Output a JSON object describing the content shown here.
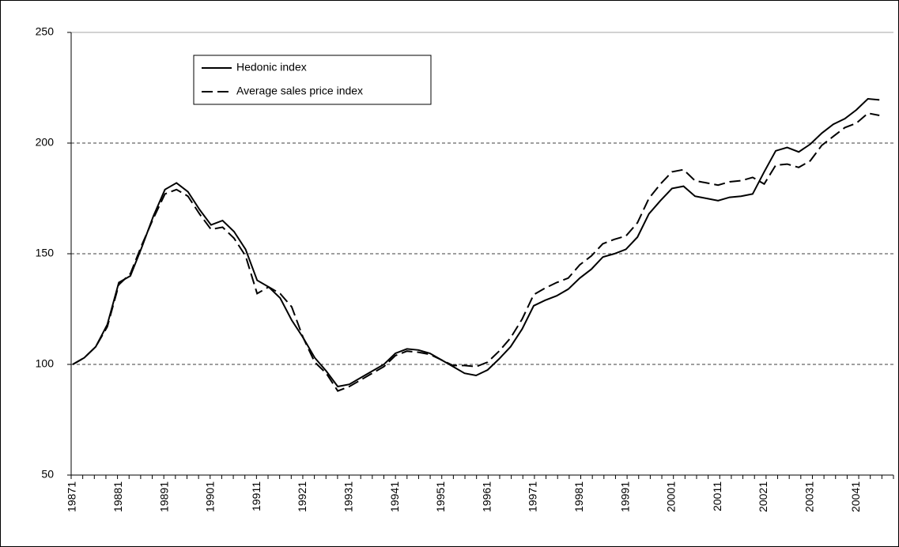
{
  "chart_data": {
    "type": "line",
    "categories": [
      "19871",
      null,
      null,
      null,
      "19881",
      null,
      null,
      null,
      "19891",
      null,
      null,
      null,
      "19901",
      null,
      null,
      null,
      "19911",
      null,
      null,
      null,
      "19921",
      null,
      null,
      null,
      "19931",
      null,
      null,
      null,
      "19941",
      null,
      null,
      null,
      "19951",
      null,
      null,
      null,
      "19961",
      null,
      null,
      null,
      "19971",
      null,
      null,
      null,
      "19981",
      null,
      null,
      null,
      "19991",
      null,
      null,
      null,
      "20001",
      null,
      null,
      null,
      "20011",
      null,
      null,
      null,
      "20021",
      null,
      null,
      null,
      "20031",
      null,
      null,
      null,
      "20041",
      null,
      null
    ],
    "series": [
      {
        "name": "Hedonic index",
        "color": "#000000",
        "line_style": "solid",
        "values": [
          100,
          103,
          108,
          118,
          137,
          140,
          153,
          167,
          179,
          182,
          178,
          170,
          163,
          165,
          160,
          152,
          138,
          135,
          130,
          120,
          112,
          103,
          97,
          90,
          91,
          94,
          97,
          100,
          105,
          107,
          106.5,
          105,
          102,
          99,
          96,
          95,
          97.5,
          102.5,
          108,
          116,
          126.5,
          129,
          131,
          134,
          139,
          143,
          148.5,
          150,
          152,
          157.5,
          168,
          174,
          179.5,
          180.5,
          176,
          175,
          174,
          175.5,
          176,
          177,
          187,
          196.5,
          198,
          196,
          199.5,
          204.5,
          208.5,
          211,
          215,
          220,
          219.5
        ]
      },
      {
        "name": "Average sales price index",
        "color": "#000000",
        "line_style": "dashed",
        "values": [
          100,
          103,
          108,
          117,
          136,
          141,
          154,
          166,
          177,
          179,
          176,
          168,
          161,
          162,
          157,
          149,
          132,
          135,
          132,
          126,
          112,
          101,
          96,
          88,
          90,
          93,
          96,
          99,
          104,
          106,
          105.5,
          104.5,
          102,
          99.5,
          99.5,
          99,
          101,
          106,
          112,
          120.5,
          131.5,
          134.5,
          137,
          139,
          145,
          149,
          154.5,
          156.5,
          158,
          164,
          175,
          181.5,
          187,
          188,
          183,
          182,
          181,
          182.5,
          183,
          184.5,
          181.5,
          190,
          190.5,
          189,
          192,
          199,
          203,
          207,
          209,
          213.5,
          212.5
        ]
      }
    ],
    "ylim": [
      50,
      250
    ],
    "yticks": [
      50,
      100,
      150,
      200,
      250
    ],
    "grid": true,
    "legend": "upper left"
  }
}
